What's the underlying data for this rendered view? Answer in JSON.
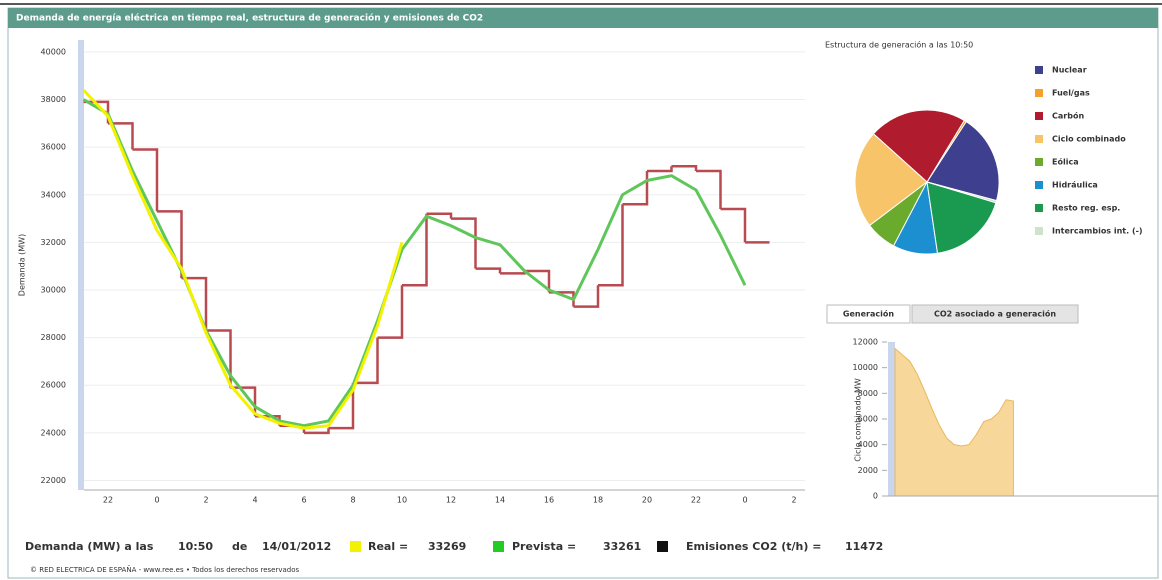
{
  "header": {
    "title": "Demanda de energía eléctrica en tiempo real, estructura de generación y emisiones de CO2"
  },
  "chart_data": [
    {
      "type": "line",
      "y_label": "Demanda (MW)",
      "grid": true,
      "categories": [
        null,
        "22",
        null,
        "0",
        null,
        "2",
        null,
        "4",
        null,
        "6",
        null,
        "8",
        null,
        "10",
        null,
        "12",
        null,
        "14",
        null,
        "16",
        null,
        "18",
        null,
        "20",
        null,
        "22",
        null,
        "0",
        null,
        "2"
      ],
      "ylim": [
        21600,
        40500
      ],
      "yticks": [
        22000,
        24000,
        26000,
        28000,
        30000,
        32000,
        34000,
        36000,
        38000,
        40000
      ],
      "series": [
        {
          "color": "#b84a50",
          "step": true,
          "values": [
            37900,
            37000,
            35900,
            33300,
            30500,
            28300,
            25900,
            24700,
            24300,
            24000,
            24200,
            26100,
            28000,
            30200,
            33200,
            33000,
            30900,
            30700,
            30800,
            29900,
            29300,
            30200,
            33600,
            35000,
            35200,
            35000,
            33400,
            32000,
            null,
            null
          ]
        },
        {
          "color": "#5fc65a",
          "values": [
            38000,
            37400,
            35000,
            32900,
            30800,
            28300,
            26400,
            25100,
            24500,
            24300,
            24500,
            26000,
            28700,
            31700,
            33100,
            32700,
            32200,
            31900,
            30800,
            30000,
            29600,
            31700,
            34000,
            34600,
            34800,
            34200,
            32300,
            30200,
            null,
            null
          ]
        },
        {
          "color": "#f2f200",
          "values": [
            38400,
            37300,
            34800,
            32500,
            30900,
            28200,
            26000,
            24800,
            24400,
            24200,
            24300,
            25800,
            28500,
            32000,
            null,
            null,
            null,
            null,
            null,
            null,
            null,
            null,
            null,
            null,
            null,
            null,
            null,
            null,
            null,
            null
          ]
        }
      ]
    },
    {
      "type": "pie",
      "title": "Estructura de generación a las 10:50",
      "categories": [
        "Nuclear",
        "Fuel/gas",
        "Carbón",
        "Ciclo combinado",
        "Eólica",
        "Hidráulica",
        "Resto reg. esp.",
        "Intercambios int. (-)"
      ],
      "values": [
        20,
        0.5,
        22,
        22,
        7,
        10,
        18,
        0.5
      ],
      "colors": [
        "#3f3f8f",
        "#f5a02a",
        "#b01c2e",
        "#f7c46a",
        "#6aab2e",
        "#1b8fd0",
        "#1a9a50",
        "#cfe3c9"
      ]
    },
    {
      "type": "area",
      "tabs": [
        "Generación",
        "CO2 asociado a generación"
      ],
      "y_label": "Ciclo combinado MW",
      "color": "#f7d79a",
      "ylim": [
        0,
        12000
      ],
      "yticks": [
        0,
        2000,
        4000,
        6000,
        8000,
        10000,
        12000
      ],
      "values": [
        11500,
        11000,
        10500,
        9500,
        8200,
        6800,
        5500,
        4500,
        4000,
        3900,
        4000,
        4800,
        5800,
        6000,
        6500,
        7500,
        7400
      ]
    }
  ],
  "status": {
    "label": "Demanda (MW) a las",
    "time": "10:50",
    "of": "de",
    "date": "14/01/2012",
    "items": [
      {
        "label": "Real =",
        "value": 33269,
        "color": "#f2f200"
      },
      {
        "label": "Prevista =",
        "value": 33261,
        "color": "#22cc22"
      },
      {
        "label": "Emisiones CO2 (t/h) =",
        "value": 11472,
        "color": "#111111"
      }
    ]
  },
  "footer": "© RED ELECTRICA DE ESPAÑA - www.ree.es • Todos los derechos reservados"
}
